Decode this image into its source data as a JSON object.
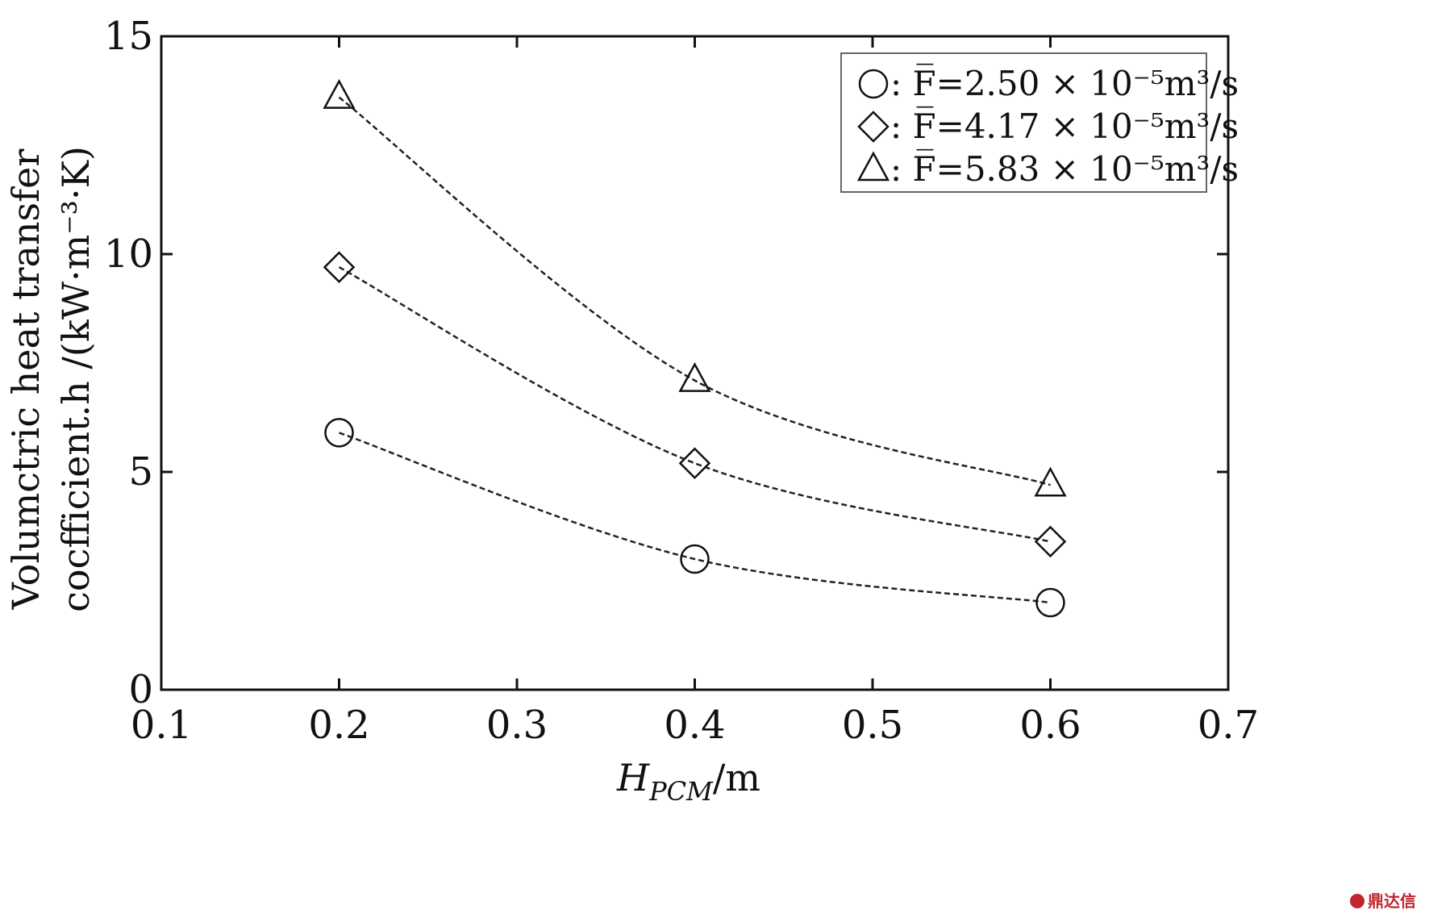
{
  "chart_data": {
    "type": "line",
    "x": [
      0.2,
      0.4,
      0.6
    ],
    "xlim": [
      0.1,
      0.7
    ],
    "ylim": [
      0,
      15
    ],
    "xticks": [
      "0.1",
      "0.2",
      "0.3",
      "0.4",
      "0.5",
      "0.6",
      "0.7"
    ],
    "yticks": [
      "0",
      "5",
      "10",
      "15"
    ],
    "xlabel": {
      "main": "H",
      "sub": "PCM",
      "rest": "/m"
    },
    "ylabel": {
      "line1": "Volumctric heat transfer",
      "line2": "cocfficient.h /(kW·m⁻³·K)"
    },
    "grid": false,
    "line_style": "dashed",
    "legend_position": "top-right",
    "series": [
      {
        "name": ": F̅=2.50 × 10⁻⁵m³/s",
        "marker": "circle",
        "values": [
          5.9,
          3.0,
          2.0
        ]
      },
      {
        "name": ": F̅=4.17 × 10⁻⁵m³/s",
        "marker": "diamond",
        "values": [
          9.7,
          5.2,
          3.4
        ]
      },
      {
        "name": ": F̅=5.83 × 10⁻⁵m³/s",
        "marker": "triangle",
        "values": [
          13.6,
          7.1,
          4.7
        ]
      }
    ]
  },
  "watermark": {
    "text": "鼎达信",
    "color": "#c0262d"
  }
}
